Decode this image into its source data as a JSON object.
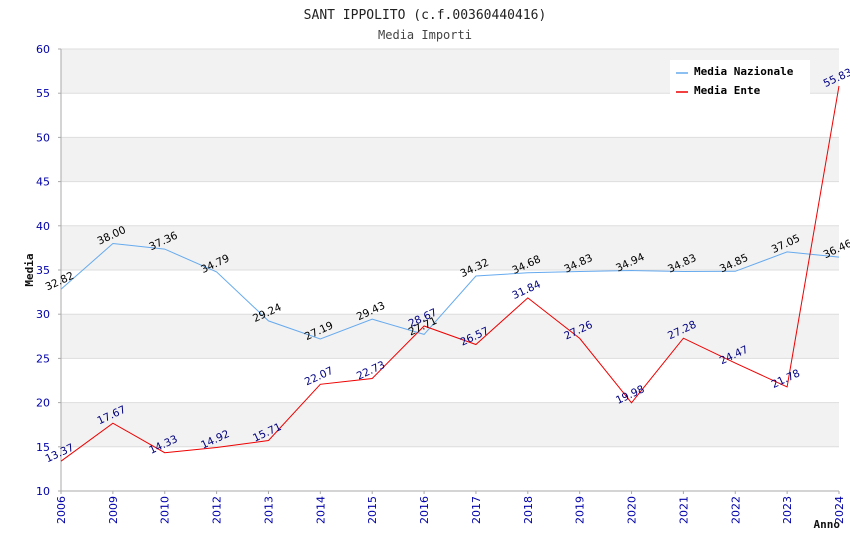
{
  "chart_data": {
    "type": "line",
    "title": "SANT IPPOLITO (c.f.00360440416)",
    "subtitle": "Media Importi",
    "xlabel": "Anno",
    "ylabel": "Media",
    "ylim": [
      10,
      60
    ],
    "yticks": [
      "10",
      "15",
      "20",
      "25",
      "30",
      "35",
      "40",
      "45",
      "50",
      "55",
      "60"
    ],
    "categories": [
      "2006",
      "2009",
      "2010",
      "2012",
      "2013",
      "2014",
      "2015",
      "2016",
      "2017",
      "2018",
      "2019",
      "2020",
      "2021",
      "2022",
      "2023",
      "2024"
    ],
    "legend_position": "top-right",
    "series": [
      {
        "name": "Media Nazionale",
        "color": "#66aaee",
        "label_color": "#000000",
        "values": [
          32.82,
          38.0,
          37.36,
          34.79,
          29.24,
          27.19,
          29.43,
          27.71,
          34.32,
          34.68,
          34.83,
          34.94,
          34.83,
          34.85,
          37.05,
          36.46
        ],
        "labels": [
          "32.82",
          "38.00",
          "37.36",
          "34.79",
          "29.24",
          "27.19",
          "29.43",
          "27.71",
          "34.32",
          "34.68",
          "34.83",
          "34.94",
          "34.83",
          "34.85",
          "37.05",
          "36.46"
        ]
      },
      {
        "name": "Media Ente",
        "color": "#ee0000",
        "label_color": "#000080",
        "values": [
          13.37,
          17.67,
          14.33,
          14.92,
          15.71,
          22.07,
          22.73,
          28.67,
          26.57,
          31.84,
          27.26,
          19.98,
          27.28,
          24.47,
          21.78,
          55.83
        ],
        "labels": [
          "13.37",
          "17.67",
          "14.33",
          "14.92",
          "15.71",
          "22.07",
          "22.73",
          "28.67",
          "26.57",
          "31.84",
          "27.26",
          "19.98",
          "27.28",
          "24.47",
          "21.78",
          "55.83"
        ]
      }
    ]
  }
}
